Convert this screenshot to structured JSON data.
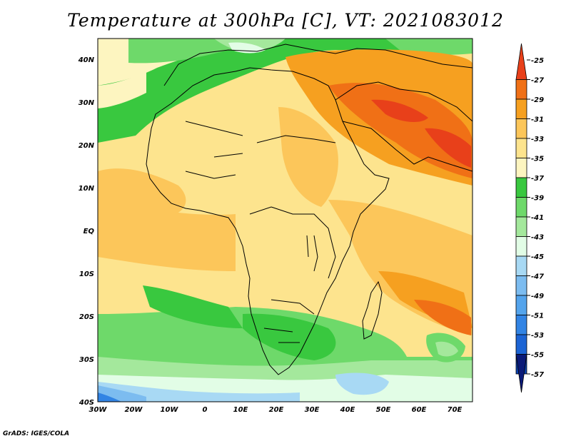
{
  "title": "Temperature at 300hPa [C], VT: 2021083012",
  "credit": "GrADS: IGES/COLA",
  "map": {
    "lon_labels": [
      "30W",
      "20W",
      "10W",
      "0",
      "10E",
      "20E",
      "30E",
      "40E",
      "50E",
      "60E",
      "70E"
    ],
    "lat_labels": [
      "40N",
      "30N",
      "20N",
      "10N",
      "EQ",
      "10S",
      "20S",
      "30S",
      "40S"
    ]
  },
  "colorbar": {
    "labels": [
      "-25",
      "-27",
      "-29",
      "-31",
      "-33",
      "-35",
      "-37",
      "-39",
      "-41",
      "-43",
      "-45",
      "-47",
      "-49",
      "-51",
      "-53",
      "-55",
      "-57"
    ],
    "colors": [
      "#e8401a",
      "#f07016",
      "#f6a020",
      "#fcc65a",
      "#fde48e",
      "#fdf5c0",
      "#39c83f",
      "#6ed96a",
      "#a4e89c",
      "#e2fde6",
      "#a8d9f4",
      "#7cbcf0",
      "#54a4ec",
      "#3284e4",
      "#1c64d4",
      "#0c44b4",
      "#0a1a78"
    ]
  }
}
